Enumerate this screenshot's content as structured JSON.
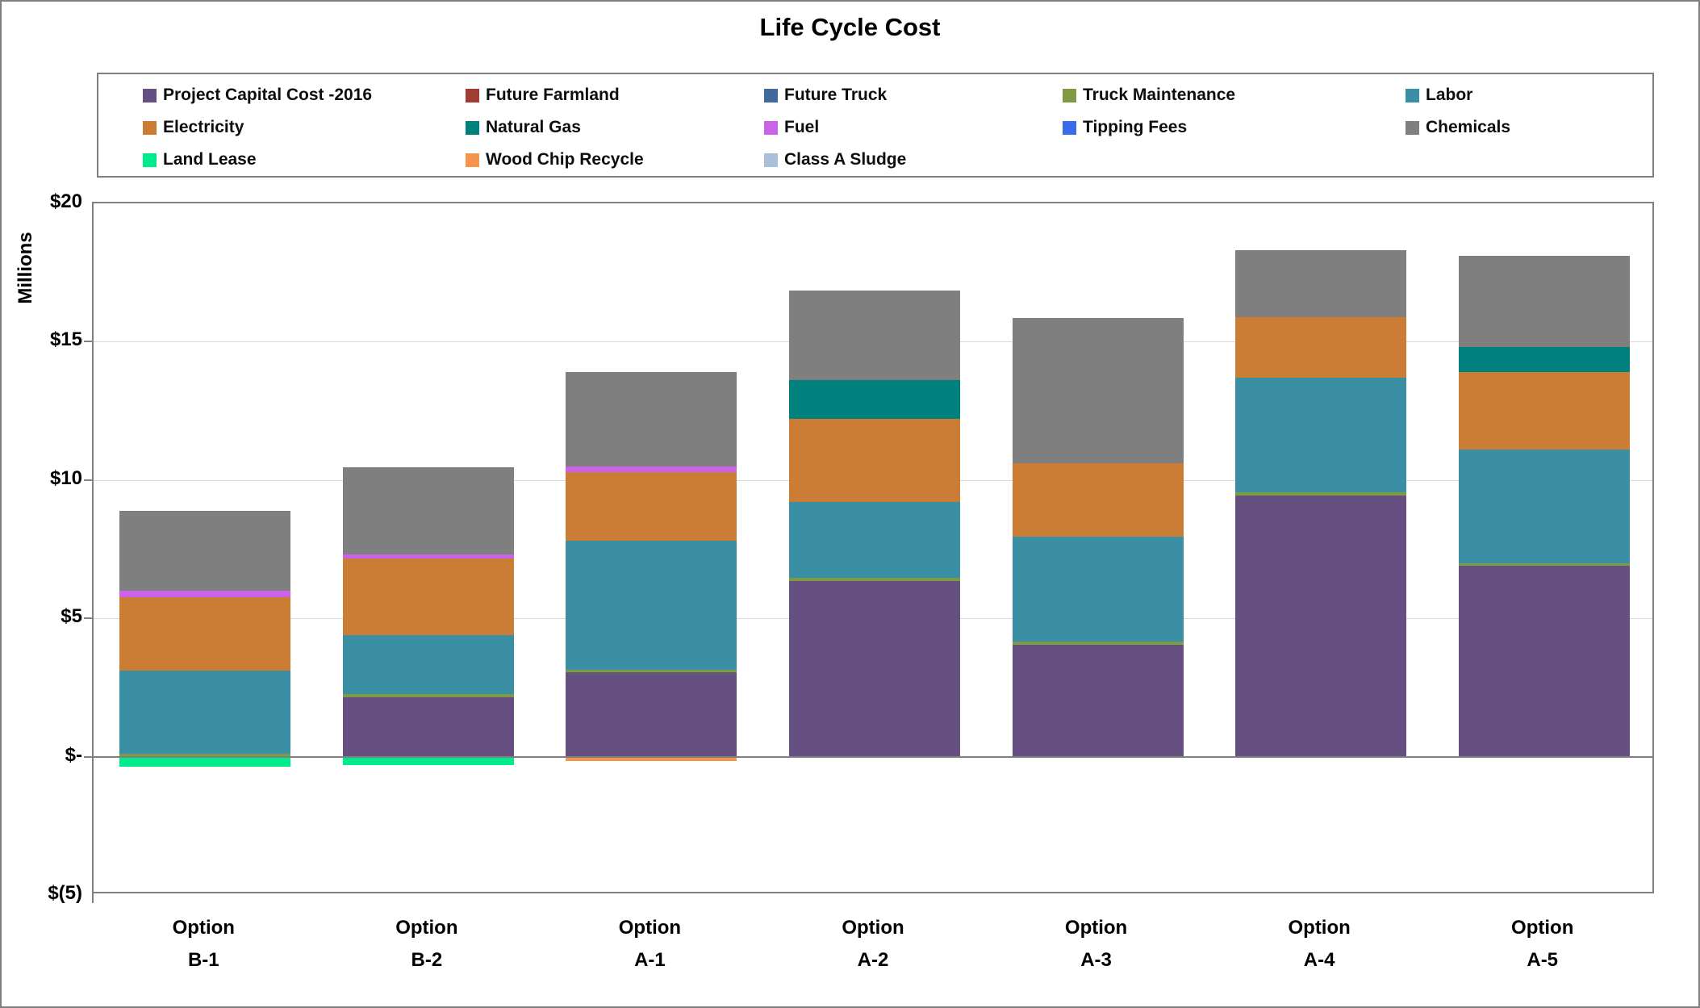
{
  "chart": {
    "title": "Life Cycle Cost",
    "y_axis_label": "Millions",
    "frame_border_color": "#7F7F7F",
    "gridline_color": "#D9D9D9",
    "axis_line_color": "#808080"
  },
  "chart_data": {
    "type": "bar",
    "stacked": true,
    "title": "Life Cycle Cost",
    "xlabel": "",
    "ylabel": "Millions",
    "units": "US$ millions",
    "ylim": [
      -5,
      20
    ],
    "grid": "horizontal",
    "gridline_values": [
      15,
      10,
      5
    ],
    "legend_position": "top",
    "y_ticks": [
      {
        "value": 20,
        "label": "$20"
      },
      {
        "value": 15,
        "label": "$15"
      },
      {
        "value": 10,
        "label": "$10"
      },
      {
        "value": 5,
        "label": "$5"
      },
      {
        "value": 0,
        "label": "$-"
      },
      {
        "value": -5,
        "label": "$(5)"
      }
    ],
    "categories": [
      "Option B-1",
      "Option B-2",
      "Option A-1",
      "Option A-2",
      "Option A-3",
      "Option A-4",
      "Option A-5"
    ],
    "category_labels": [
      {
        "line1": "Option",
        "line2": "B-1"
      },
      {
        "line1": "Option",
        "line2": "B-2"
      },
      {
        "line1": "Option",
        "line2": "A-1"
      },
      {
        "line1": "Option",
        "line2": "A-2"
      },
      {
        "line1": "Option",
        "line2": "A-3"
      },
      {
        "line1": "Option",
        "line2": "A-4"
      },
      {
        "line1": "Option",
        "line2": "A-5"
      }
    ],
    "series": [
      {
        "name": "Project Capital Cost -2016",
        "color": "#655081",
        "values": [
          0,
          2.15,
          3.05,
          6.35,
          4.05,
          9.45,
          6.9
        ]
      },
      {
        "name": "Future Farmland",
        "color": "#A23B32",
        "values": [
          0,
          0,
          0,
          0,
          0,
          0,
          0
        ]
      },
      {
        "name": "Future Truck",
        "color": "#41699B",
        "values": [
          0,
          0,
          0,
          0,
          0,
          0,
          0
        ]
      },
      {
        "name": "Truck Maintenance",
        "color": "#7E9B44",
        "values": [
          0.1,
          0.1,
          0.1,
          0.1,
          0.1,
          0.1,
          0.1
        ]
      },
      {
        "name": "Labor",
        "color": "#3A8FA4",
        "values": [
          3.0,
          2.15,
          4.65,
          2.75,
          3.8,
          4.15,
          4.1
        ]
      },
      {
        "name": "Electricity",
        "color": "#CB7D35",
        "values": [
          2.65,
          2.75,
          2.5,
          3.0,
          2.65,
          2.2,
          2.8
        ]
      },
      {
        "name": "Natural Gas",
        "color": "#00817E",
        "values": [
          0,
          0,
          0,
          1.4,
          0,
          0,
          0.9
        ]
      },
      {
        "name": "Fuel",
        "color": "#CB63E8",
        "values": [
          0.25,
          0.15,
          0.2,
          0,
          0,
          0,
          0
        ]
      },
      {
        "name": "Tipping Fees",
        "color": "#3A6BE8",
        "values": [
          0,
          0,
          0,
          0,
          0,
          0,
          0
        ]
      },
      {
        "name": "Chemicals",
        "color": "#7F7F7F",
        "values": [
          2.9,
          3.15,
          3.4,
          3.25,
          5.25,
          2.4,
          3.3
        ]
      },
      {
        "name": "Land Lease",
        "color": "#00EC8C",
        "values": [
          -0.35,
          -0.3,
          0,
          0,
          0,
          0,
          0
        ]
      },
      {
        "name": "Wood Chip Recycle",
        "color": "#F5944A",
        "values": [
          0,
          0,
          -0.15,
          0,
          0,
          0,
          0
        ]
      },
      {
        "name": "Class A Sludge",
        "color": "#AABFDC",
        "values": [
          0,
          0,
          0,
          0,
          0,
          0,
          0
        ]
      }
    ],
    "bar_totals": [
      8.9,
      10.45,
      13.9,
      16.85,
      15.85,
      18.3,
      18.1
    ]
  }
}
